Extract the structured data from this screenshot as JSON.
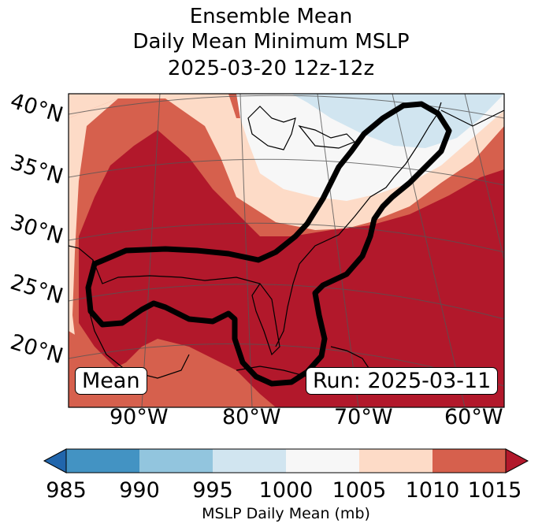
{
  "title": {
    "line1": "Ensemble Mean",
    "line2": "Daily Mean Minimum MSLP",
    "line3": "2025-03-20 12z-12z"
  },
  "map": {
    "latitude_labels": [
      "40°N",
      "35°N",
      "30°N",
      "25°N",
      "20°N"
    ],
    "longitude_labels": [
      "90°W",
      "80°W",
      "70°W",
      "60°W"
    ],
    "mean_box": "Mean",
    "run_box": "Run: 2025-03-11"
  },
  "colorbar": {
    "ticks": [
      "985",
      "990",
      "995",
      "1000",
      "1005",
      "1010",
      "1015"
    ],
    "label": "MSLP Daily Mean (mb)",
    "colors": [
      "#2166ac",
      "#4393c3",
      "#92c5de",
      "#d1e5f0",
      "#f7f7f7",
      "#fddbc7",
      "#d6604d",
      "#b2182b"
    ]
  }
}
